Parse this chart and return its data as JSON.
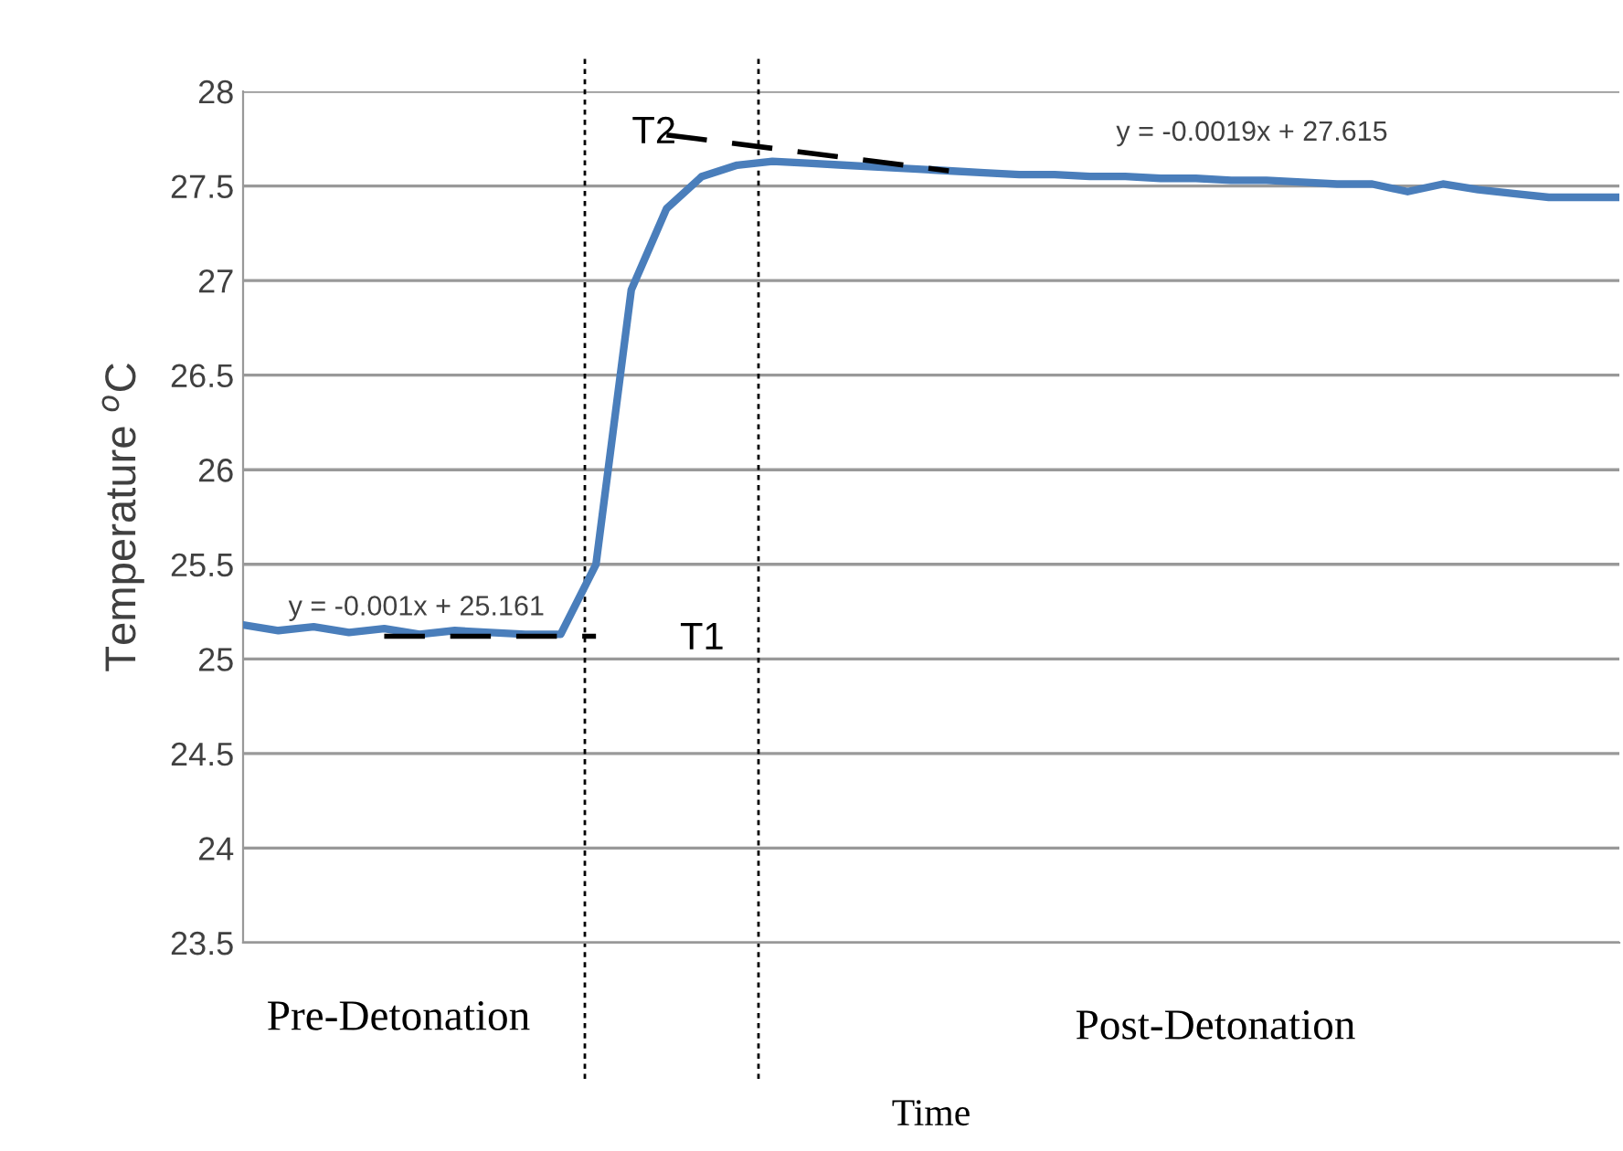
{
  "chart_data": {
    "type": "line",
    "xlabel": "Time",
    "ylabel": "Temperature $^{o}$C",
    "categories": [
      null,
      null,
      null,
      null,
      null,
      null,
      null,
      null,
      null,
      null,
      null,
      null,
      null,
      null,
      null,
      null,
      null,
      null,
      null,
      null,
      null,
      null,
      null,
      null,
      null,
      null,
      null,
      null,
      null,
      null,
      null,
      null,
      null,
      null,
      null,
      null,
      null,
      null,
      null,
      null
    ],
    "ylim": [
      23.5,
      28
    ],
    "yticks": [
      23.5,
      24,
      24.5,
      25,
      25.5,
      26,
      26.5,
      27,
      27.5,
      28
    ],
    "grid": "y",
    "series": [
      {
        "color": "#4a7ebb",
        "values": [
          25.18,
          25.15,
          25.17,
          25.14,
          25.16,
          25.13,
          25.15,
          25.14,
          25.13,
          25.13,
          25.5,
          26.95,
          27.38,
          27.55,
          27.61,
          27.63,
          27.62,
          27.61,
          27.6,
          27.59,
          27.58,
          27.57,
          27.56,
          27.56,
          27.55,
          27.55,
          27.54,
          27.54,
          27.53,
          27.53,
          27.52,
          27.51,
          27.51,
          27.47,
          27.51,
          27.48,
          27.46,
          27.44,
          27.44,
          27.44
        ]
      },
      {
        "color": "#000000",
        "line_style": "dashed",
        "values": [
          null,
          null,
          null,
          null,
          25.12,
          null,
          null,
          null,
          null,
          null,
          25.12,
          null,
          null,
          null,
          null,
          null,
          null,
          null,
          null,
          null,
          null,
          null,
          null,
          null,
          null,
          null,
          null,
          null,
          null,
          null,
          null,
          null,
          null,
          null,
          null,
          null,
          null,
          null,
          null,
          null
        ]
      },
      {
        "color": "#000000",
        "line_style": "dashed",
        "values": [
          null,
          null,
          null,
          null,
          null,
          null,
          null,
          null,
          null,
          null,
          null,
          null,
          27.77,
          null,
          null,
          null,
          null,
          null,
          null,
          null,
          27.58,
          null,
          null,
          null,
          null,
          null,
          null,
          null,
          null,
          null,
          null,
          null,
          null,
          null,
          null,
          null,
          null,
          null,
          null,
          null
        ]
      }
    ],
    "annotations": [
      {
        "text": "y = -0.001x + 25.161",
        "y": 25.2
      },
      "T1",
      "T2",
      "y = -0.0019x + 27.615",
      "Pre-Detonation",
      "Post-Detonation"
    ]
  }
}
